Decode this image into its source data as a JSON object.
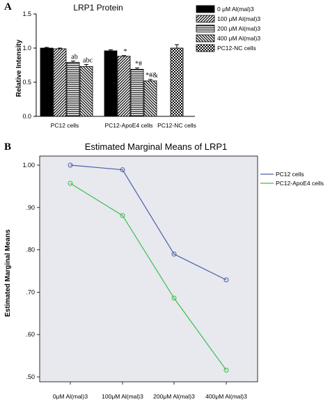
{
  "panel_a_letter": "A",
  "panel_b_letter": "B",
  "chart_data": [
    {
      "type": "bar",
      "title": "LRP1 Protein",
      "ylabel": "Relative Intensity",
      "ylim": [
        0,
        1.5
      ],
      "yticks": [
        "0.0",
        "0.5",
        "1.0",
        "1.5"
      ],
      "categories": [
        "PC12 cells",
        "PC12-ApoE4 cells",
        "PC12-NC cells"
      ],
      "legend_position": "top-right",
      "series": [
        {
          "name": "0    μM Al(mal)3",
          "pattern": "solid",
          "values": [
            1.0,
            0.96,
            null
          ],
          "errors": [
            0.01,
            0.015,
            null
          ],
          "annotations": [
            "",
            "",
            ""
          ]
        },
        {
          "name": "100 μM Al(mal)3",
          "pattern": "diag-right",
          "values": [
            0.99,
            0.88,
            null
          ],
          "errors": [
            0.01,
            0.01,
            null
          ],
          "annotations": [
            "",
            "*",
            ""
          ]
        },
        {
          "name": "200 μM Al(mal)3",
          "pattern": "horizontal",
          "values": [
            0.79,
            0.69,
            null
          ],
          "errors": [
            0.02,
            0.02,
            null
          ],
          "annotations": [
            "ab",
            "*#",
            ""
          ]
        },
        {
          "name": "400 μM Al(mal)3",
          "pattern": "diag-left",
          "values": [
            0.73,
            0.52,
            null
          ],
          "errors": [
            0.03,
            0.02,
            null
          ],
          "annotations": [
            "abc",
            "*#&",
            ""
          ]
        },
        {
          "name": "PC12-NC cells",
          "pattern": "checker",
          "values": [
            null,
            null,
            1.0
          ],
          "errors": [
            null,
            null,
            0.05
          ],
          "annotations": [
            "",
            "",
            ""
          ]
        }
      ]
    },
    {
      "type": "line",
      "title": "Estimated Marginal Means of LRP1",
      "ylabel": "Estimated Marginal Means",
      "ylim": [
        0.5,
        1.0
      ],
      "yticks": [
        "1.00",
        ".90",
        ".80",
        ".70",
        ".60",
        ".50"
      ],
      "x": [
        "0μM Al(mal)3",
        "100μM Al(mal)3",
        "200μM Al(mal)3",
        "400μM Al(mal)3"
      ],
      "grid": false,
      "legend_position": "right",
      "series": [
        {
          "name": "PC12 cells",
          "color": "#4a5fa8",
          "values": [
            1.0,
            0.989,
            0.79,
            0.729
          ]
        },
        {
          "name": "PC12-ApoE4 cells",
          "color": "#3cbf4a",
          "values": [
            0.957,
            0.881,
            0.686,
            0.516
          ]
        }
      ]
    }
  ]
}
